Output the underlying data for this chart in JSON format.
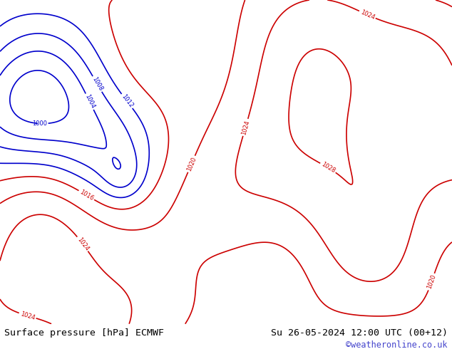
{
  "fig_width": 6.34,
  "fig_height": 4.9,
  "dpi": 100,
  "background_color": "#f0f0f0",
  "bottom_bar_color": "#d8d8d8",
  "bottom_bar_height": 0.072,
  "left_label": "Surface pressure [hPa] ECMWF",
  "right_label": "Su 26-05-2024 12:00 UTC (00+12)",
  "watermark": "©weatheronline.co.uk",
  "left_label_color": "#000000",
  "right_label_color": "#000000",
  "watermark_color": "#4444cc",
  "label_fontsize": 9.5,
  "watermark_fontsize": 8.5,
  "map_area": {
    "lon_min": -25,
    "lon_max": 45,
    "lat_min": 30,
    "lat_max": 72
  }
}
